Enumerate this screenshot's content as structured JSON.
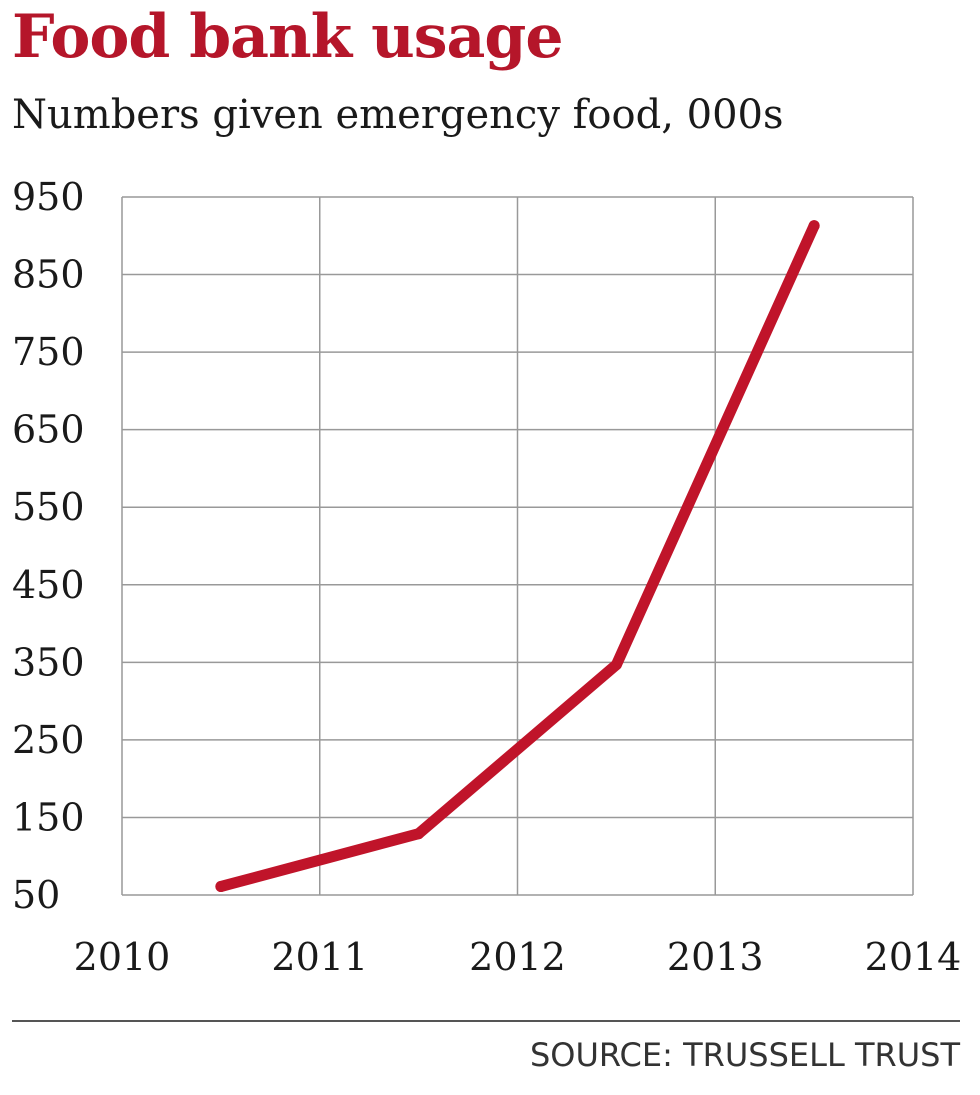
{
  "title": "Food bank usage",
  "subtitle": "Numbers given emergency food, 000s",
  "source": "SOURCE: TRUSSELL TRUST",
  "colors": {
    "line": "#c0142a",
    "title": "#b5162a",
    "grid": "#999999"
  },
  "chart_data": {
    "type": "line",
    "title": "Food bank usage",
    "subtitle": "Numbers given emergency food, 000s",
    "xlabel": "",
    "ylabel": "",
    "xlim": [
      2010,
      2014
    ],
    "ylim": [
      50,
      950
    ],
    "x_ticks": [
      "2010",
      "2011",
      "2012",
      "2013",
      "2014"
    ],
    "y_ticks": [
      "950",
      "850",
      "750",
      "650",
      "550",
      "450",
      "350",
      "250",
      "150",
      "50"
    ],
    "grid": true,
    "legend": "none",
    "series": [
      {
        "x": [
          2010.5,
          2011.5,
          2012.5,
          2013.5
        ],
        "y": [
          61,
          129,
          347,
          913
        ]
      }
    ]
  }
}
